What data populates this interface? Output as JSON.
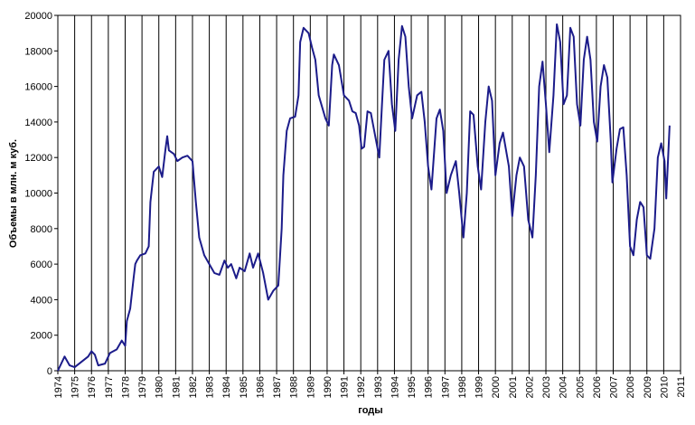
{
  "chart_data": {
    "type": "line",
    "x_label": "годы",
    "y_label": "Объемы в млн. м куб.",
    "xlim": [
      1974,
      2011
    ],
    "ylim": [
      0,
      20000
    ],
    "xticks": [
      1974,
      1975,
      1976,
      1977,
      1978,
      1979,
      1980,
      1981,
      1982,
      1983,
      1984,
      1985,
      1986,
      1987,
      1988,
      1989,
      1990,
      1991,
      1992,
      1993,
      1994,
      1995,
      1996,
      1997,
      1998,
      1999,
      2000,
      2001,
      2002,
      2003,
      2004,
      2005,
      2006,
      2007,
      2008,
      2009,
      2010,
      2011
    ],
    "yticks": [
      0,
      2000,
      4000,
      6000,
      8000,
      10000,
      12000,
      14000,
      16000,
      18000,
      20000
    ],
    "xgrid": true,
    "color": "#1c1c8a",
    "x": [
      1974.0,
      1974.2,
      1974.4,
      1974.7,
      1975.0,
      1975.4,
      1975.8,
      1976.0,
      1976.2,
      1976.4,
      1976.8,
      1977.1,
      1977.5,
      1977.8,
      1978.0,
      1978.1,
      1978.3,
      1978.5,
      1978.6,
      1978.7,
      1978.9,
      1979.2,
      1979.4,
      1979.5,
      1979.7,
      1980.0,
      1980.2,
      1980.4,
      1980.5,
      1980.6,
      1980.9,
      1981.1,
      1981.4,
      1981.7,
      1982.0,
      1982.2,
      1982.4,
      1982.7,
      1983.0,
      1983.3,
      1983.6,
      1983.9,
      1984.1,
      1984.3,
      1984.6,
      1984.8,
      1985.1,
      1985.4,
      1985.6,
      1985.9,
      1986.2,
      1986.5,
      1986.8,
      1987.1,
      1987.3,
      1987.4,
      1987.6,
      1987.8,
      1988.1,
      1988.3,
      1988.4,
      1988.6,
      1988.9,
      1989.1,
      1989.3,
      1989.5,
      1989.9,
      1990.1,
      1990.3,
      1990.4,
      1990.7,
      1991.0,
      1991.3,
      1991.5,
      1991.7,
      1991.9,
      1992.05,
      1992.2,
      1992.4,
      1992.6,
      1992.9,
      1993.1,
      1993.25,
      1993.4,
      1993.65,
      1993.85,
      1994.05,
      1994.25,
      1994.45,
      1994.65,
      1994.85,
      1995.05,
      1995.35,
      1995.6,
      1995.8,
      1996.0,
      1996.2,
      1996.5,
      1996.7,
      1996.9,
      1997.1,
      1997.35,
      1997.65,
      1997.85,
      1998.1,
      1998.3,
      1998.5,
      1998.7,
      1998.95,
      1999.15,
      1999.4,
      1999.6,
      1999.8,
      2000.0,
      2000.25,
      2000.45,
      2000.8,
      2001.0,
      2001.25,
      2001.45,
      2001.7,
      2001.95,
      2002.2,
      2002.4,
      2002.6,
      2002.8,
      2003.0,
      2003.2,
      2003.45,
      2003.65,
      2003.85,
      2004.05,
      2004.25,
      2004.45,
      2004.65,
      2004.85,
      2005.05,
      2005.25,
      2005.45,
      2005.65,
      2005.85,
      2006.05,
      2006.25,
      2006.45,
      2006.65,
      2006.85,
      2006.95,
      2007.2,
      2007.4,
      2007.6,
      2007.8,
      2008.0,
      2008.2,
      2008.4,
      2008.6,
      2008.8,
      2009.0,
      2009.2,
      2009.45,
      2009.65,
      2009.85,
      2010.05,
      2010.15,
      2010.35
    ],
    "values": [
      0,
      400,
      800,
      300,
      200,
      500,
      800,
      1100,
      900,
      300,
      400,
      1000,
      1200,
      1700,
      1400,
      2800,
      3500,
      5200,
      6000,
      6200,
      6500,
      6600,
      7000,
      9500,
      11200,
      11500,
      10900,
      12500,
      13200,
      12400,
      12200,
      11800,
      12000,
      12100,
      11800,
      9500,
      7500,
      6500,
      6000,
      5500,
      5400,
      6200,
      5800,
      6000,
      5200,
      5800,
      5600,
      6600,
      5800,
      6600,
      5500,
      4000,
      4500,
      4800,
      8000,
      11000,
      13500,
      14200,
      14300,
      15500,
      18500,
      19300,
      19000,
      18200,
      17500,
      15500,
      14200,
      13800,
      17200,
      17800,
      17200,
      15500,
      15200,
      14600,
      14500,
      13800,
      12500,
      12600,
      14600,
      14500,
      13000,
      12000,
      14800,
      17500,
      18000,
      15000,
      13500,
      17500,
      19400,
      18800,
      16000,
      14200,
      15500,
      15700,
      14000,
      11500,
      10200,
      14200,
      14700,
      13500,
      10000,
      11000,
      11800,
      10000,
      7500,
      10000,
      14600,
      14400,
      11500,
      10200,
      14000,
      16000,
      15200,
      11000,
      12800,
      13400,
      11500,
      8700,
      11000,
      12000,
      11500,
      8500,
      7500,
      11000,
      16000,
      17400,
      15000,
      12300,
      15500,
      19500,
      18500,
      15000,
      15500,
      19300,
      18800,
      15000,
      13800,
      17500,
      18800,
      17500,
      14000,
      12900,
      16000,
      17200,
      16500,
      13000,
      10600,
      12500,
      13600,
      13700,
      11000,
      7000,
      6500,
      8500,
      9500,
      9200,
      6500,
      6300,
      8000,
      12000,
      12800,
      11800,
      9700,
      13800
    ]
  }
}
